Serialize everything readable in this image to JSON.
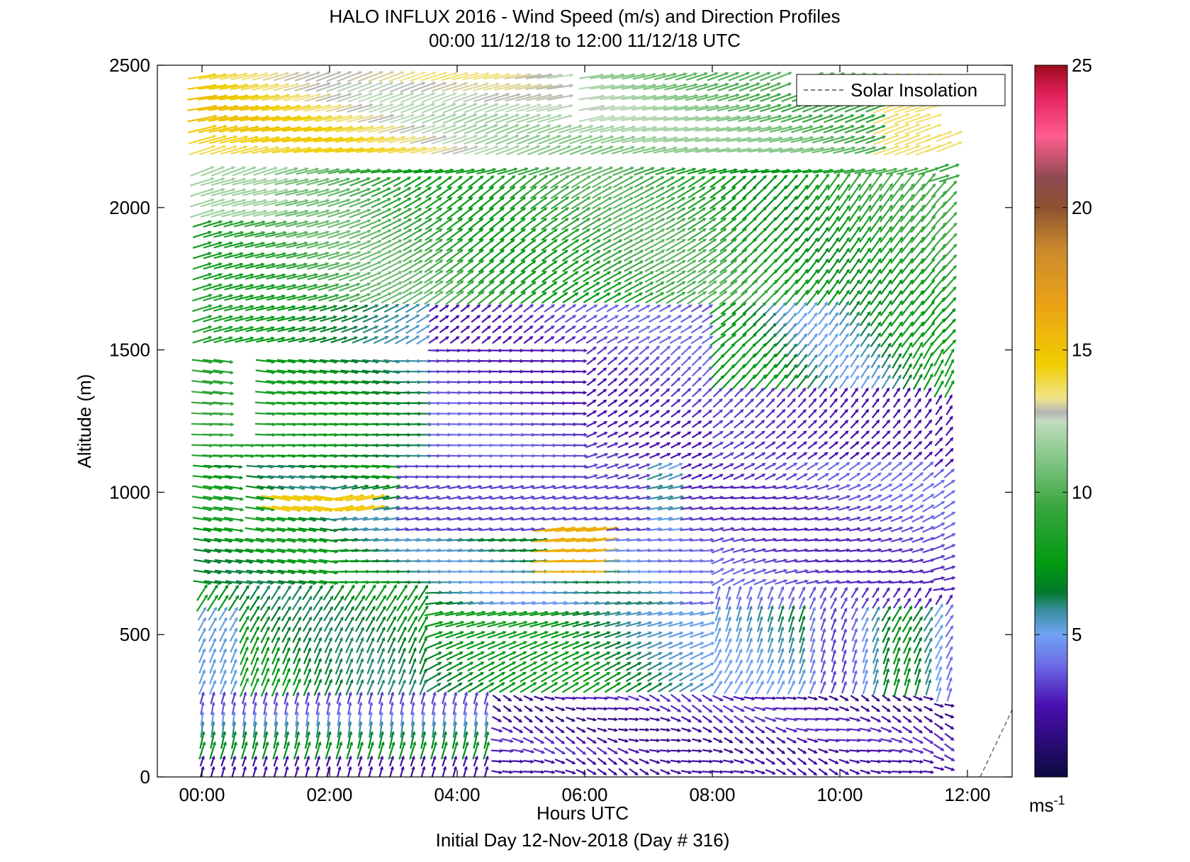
{
  "chart_data": {
    "type": "scatter",
    "subtype": "wind-vector-profile",
    "title": "HALO INFLUX 2016 - Wind Speed (m/s) and Direction Profiles",
    "subtitle": "00:00 11/12/18 to 12:00 11/12/18  UTC",
    "xlabel": "Hours UTC",
    "ylabel": "Altitude (m)",
    "footer": "Initial Day 12-Nov-2018 (Day # 316)",
    "xlim": [
      -0.7,
      12.7
    ],
    "ylim": [
      0,
      2500
    ],
    "x_ticks": [
      0,
      2,
      4,
      6,
      8,
      10,
      12
    ],
    "x_tick_labels": [
      "00:00",
      "02:00",
      "04:00",
      "06:00",
      "08:00",
      "10:00",
      "12:00"
    ],
    "y_ticks": [
      0,
      500,
      1000,
      1500,
      2000,
      2500
    ],
    "y_tick_labels": [
      "0",
      "500",
      "1000",
      "1500",
      "2000",
      "2500"
    ],
    "legend": {
      "entries": [
        "Solar Insolation"
      ],
      "placement": "top-right"
    },
    "colorbar": {
      "range": [
        0,
        25
      ],
      "ticks": [
        5,
        10,
        15,
        20,
        25
      ],
      "tick_labels": [
        "5",
        "10",
        "15",
        "20",
        "25"
      ],
      "unit": "ms",
      "unit_exponent": "-1",
      "stops": [
        {
          "v": 0,
          "color": "#0b0b40"
        },
        {
          "v": 2.5,
          "color": "#4a0eb0"
        },
        {
          "v": 4.0,
          "color": "#6e6ee8"
        },
        {
          "v": 5.0,
          "color": "#6fa3f2"
        },
        {
          "v": 5.8,
          "color": "#3c8fa6"
        },
        {
          "v": 6.5,
          "color": "#007a2a"
        },
        {
          "v": 7.5,
          "color": "#009a10"
        },
        {
          "v": 9.5,
          "color": "#3aa640"
        },
        {
          "v": 11.5,
          "color": "#92cc94"
        },
        {
          "v": 12.5,
          "color": "#c2dcbf"
        },
        {
          "v": 12.8,
          "color": "#b4b4b4"
        },
        {
          "v": 13.3,
          "color": "#f1e48a"
        },
        {
          "v": 14.5,
          "color": "#f0cd00"
        },
        {
          "v": 16.5,
          "color": "#eba414"
        },
        {
          "v": 18.5,
          "color": "#cc8a2c"
        },
        {
          "v": 20.0,
          "color": "#8c5230"
        },
        {
          "v": 21.0,
          "color": "#8c4a50"
        },
        {
          "v": 22.5,
          "color": "#ff5c8e"
        },
        {
          "v": 24.0,
          "color": "#e0205a"
        },
        {
          "v": 25.0,
          "color": "#9c0a1c"
        }
      ]
    },
    "solar_insolation": {
      "x": [
        12.2,
        12.9
      ],
      "y": [
        0,
        330
      ],
      "style": "dashed",
      "color": "#555555"
    },
    "wind_field": {
      "time_start": 0,
      "time_end": 11.8,
      "time_step": 0.165,
      "altitude_step": 37,
      "data_gaps": [
        {
          "x": [
            0.45,
            0.85
          ],
          "y": [
            1180,
            1480
          ]
        },
        {
          "x": [
            0.6,
            0.75
          ],
          "y": [
            850,
            1100
          ]
        },
        {
          "x": [
            5.75,
            6.05
          ],
          "y": [
            2300,
            2500
          ]
        },
        {
          "x": [
            9.2,
            9.55
          ],
          "y": [
            2390,
            2500
          ]
        }
      ]
    }
  }
}
